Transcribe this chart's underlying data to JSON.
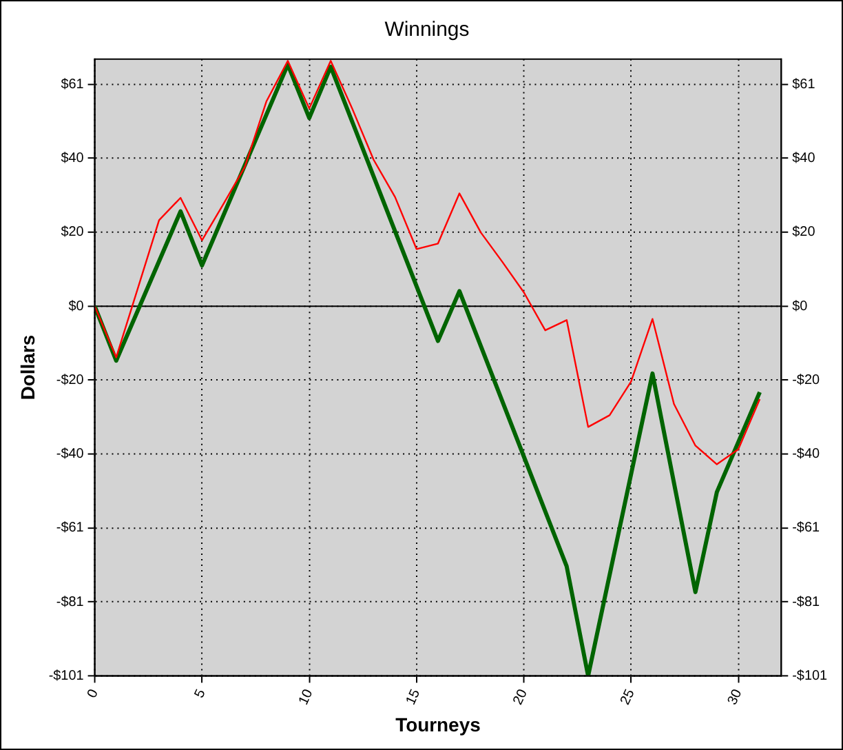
{
  "chart_data": {
    "type": "line",
    "title": "Winnings",
    "xlabel": "Tourneys",
    "ylabel": "Dollars",
    "xlim": [
      0,
      32
    ],
    "xticks": [
      0,
      5,
      10,
      15,
      20,
      25,
      30
    ],
    "ylim": [
      -101,
      67.5
    ],
    "yticks": [
      {
        "value": -101,
        "label": "-$101"
      },
      {
        "value": -80.8,
        "label": "-$81"
      },
      {
        "value": -60.6,
        "label": "-$61"
      },
      {
        "value": -40.4,
        "label": "-$40"
      },
      {
        "value": -20.2,
        "label": "-$20"
      },
      {
        "value": 0,
        "label": "$0"
      },
      {
        "value": 20.2,
        "label": "$20"
      },
      {
        "value": 40.4,
        "label": "$40"
      },
      {
        "value": 60.6,
        "label": "$61"
      }
    ],
    "y2lim": [
      -101,
      67.5
    ],
    "y2ticks": [
      {
        "value": -101,
        "label": "-$101"
      },
      {
        "value": -80.8,
        "label": "-$81"
      },
      {
        "value": -60.6,
        "label": "-$61"
      },
      {
        "value": -40.4,
        "label": "-$40"
      },
      {
        "value": -20.2,
        "label": "-$20"
      },
      {
        "value": 0,
        "label": "$0"
      },
      {
        "value": 20.2,
        "label": "$20"
      },
      {
        "value": 40.4,
        "label": "$40"
      },
      {
        "value": 60.6,
        "label": "$61"
      }
    ],
    "grid": true,
    "legend": false,
    "marker": "none",
    "line_style": "solid",
    "ref_lines": [
      {
        "axis": "y",
        "value": 0,
        "color": "#000000"
      }
    ],
    "series": [
      {
        "color": "#ff0000",
        "x": [
          0,
          1,
          2,
          3,
          4,
          5,
          6,
          7,
          8,
          9,
          10,
          11,
          12,
          13,
          14,
          15,
          16,
          17,
          18,
          19,
          20,
          21,
          22,
          23,
          24,
          25,
          26,
          27,
          28,
          29,
          30,
          31
        ],
        "values": [
          0,
          -14,
          4.7,
          23.5,
          29.6,
          18,
          27.9,
          38.1,
          55.9,
          67,
          54,
          67,
          54,
          40,
          29.8,
          15.6,
          17.1,
          30.8,
          20.1,
          12.1,
          3.8,
          -6.6,
          -3.8,
          -33,
          -29.8,
          -20.6,
          -3.5,
          -26.7,
          -38.1,
          -43.2,
          -39.1,
          -25.4
        ]
      },
      {
        "color": "#006400",
        "x": [
          0,
          1,
          4,
          5,
          9,
          10,
          11,
          16,
          17,
          22,
          23,
          26,
          28,
          29,
          31
        ],
        "values": [
          0,
          -14.9,
          25.9,
          11.1,
          66,
          51.4,
          65.4,
          -9.5,
          4.1,
          -71.1,
          -101,
          -18.4,
          -78.1,
          -50.8,
          -23.5
        ]
      }
    ]
  }
}
